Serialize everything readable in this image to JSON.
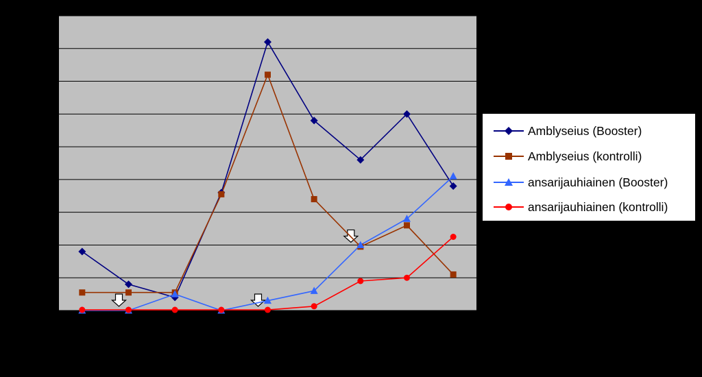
{
  "chart_data": {
    "type": "line",
    "title": "",
    "xlabel": "",
    "ylabel": "",
    "ylim": [
      0,
      90
    ],
    "yticks": [
      0,
      10,
      20,
      30,
      40,
      50,
      60,
      70,
      80,
      90
    ],
    "grid": true,
    "legend_position": "right",
    "plot_background": "#c0c0c0",
    "categories": [
      "",
      "",
      "",
      "",
      "",
      "",
      "",
      "",
      ""
    ],
    "group_labels": [
      {
        "label": "",
        "span": [
          0,
          4
        ]
      },
      {
        "label": "",
        "span": [
          5,
          8
        ]
      }
    ],
    "arrow_markers_at_category_index": [
      1,
      4,
      6
    ],
    "series": [
      {
        "name": "Amblyseius (Booster)",
        "color": "#000080",
        "marker": "diamond",
        "values": [
          18,
          8,
          4,
          36,
          82,
          58,
          46,
          60,
          38
        ]
      },
      {
        "name": "Amblyseius (kontrolli)",
        "color": "#993300",
        "marker": "square",
        "values": [
          5.5,
          5.5,
          5.5,
          35.5,
          72,
          34,
          19.5,
          26,
          11
        ]
      },
      {
        "name": "ansarijauhiainen (Booster)",
        "color": "#3366ff",
        "marker": "triangle",
        "values": [
          0,
          0,
          5,
          0,
          3,
          6,
          20,
          28,
          41
        ]
      },
      {
        "name": "ansarijauhiainen (kontrolli)",
        "color": "#ff0000",
        "marker": "circle",
        "values": [
          0.2,
          0.2,
          0.2,
          0.2,
          0.2,
          1.3,
          9,
          10,
          22.5
        ]
      }
    ]
  }
}
